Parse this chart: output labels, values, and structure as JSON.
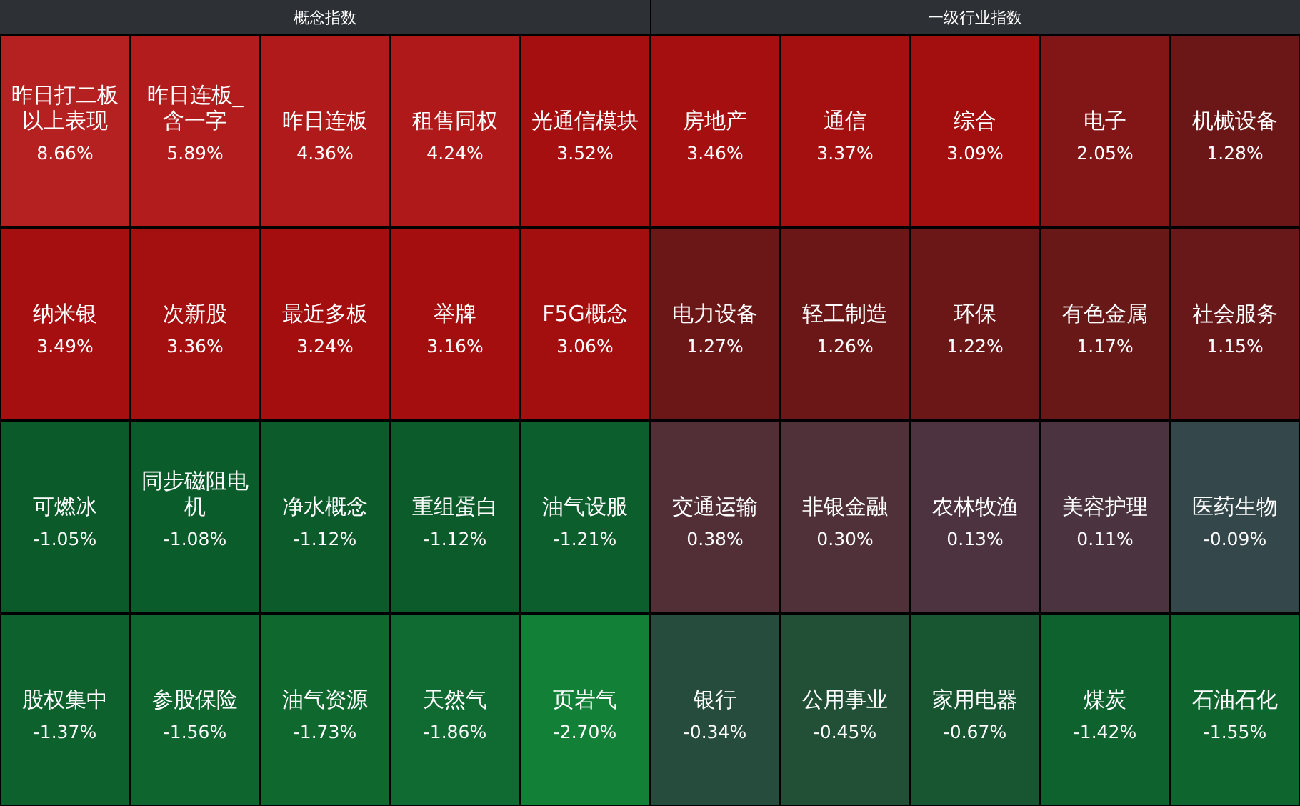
{
  "chart_data": [
    {
      "type": "other",
      "title": "概念指数",
      "categories": [
        "昨日打二板以上表现",
        "昨日连板_含一字",
        "昨日连板",
        "租售同权",
        "光通信模块",
        "纳米银",
        "次新股",
        "最近多板",
        "举牌",
        "F5G概念",
        "可燃冰",
        "同步磁阻电机",
        "净水概念",
        "重组蛋白",
        "油气设服",
        "股权集中",
        "参股保险",
        "油气资源",
        "天然气",
        "页岩气"
      ],
      "values": [
        8.66,
        5.89,
        4.36,
        4.24,
        3.52,
        3.49,
        3.36,
        3.24,
        3.16,
        3.06,
        -1.05,
        -1.08,
        -1.12,
        -1.12,
        -1.21,
        -1.37,
        -1.56,
        -1.73,
        -1.86,
        -2.7
      ],
      "value_labels": [
        "8.66%",
        "5.89%",
        "4.36%",
        "4.24%",
        "3.52%",
        "3.49%",
        "3.36%",
        "3.24%",
        "3.16%",
        "3.06%",
        "-1.05%",
        "-1.08%",
        "-1.12%",
        "-1.12%",
        "-1.21%",
        "-1.37%",
        "-1.56%",
        "-1.73%",
        "-1.86%",
        "-2.70%"
      ]
    },
    {
      "type": "other",
      "title": "一级行业指数",
      "categories": [
        "房地产",
        "通信",
        "综合",
        "电子",
        "机械设备",
        "电力设备",
        "轻工制造",
        "环保",
        "有色金属",
        "社会服务",
        "交通运输",
        "非银金融",
        "农林牧渔",
        "美容护理",
        "医药生物",
        "银行",
        "公用事业",
        "家用电器",
        "煤炭",
        "石油石化"
      ],
      "values": [
        3.46,
        3.37,
        3.09,
        2.05,
        1.28,
        1.27,
        1.26,
        1.22,
        1.17,
        1.15,
        0.38,
        0.3,
        0.13,
        0.11,
        -0.09,
        -0.34,
        -0.45,
        -0.67,
        -1.42,
        -1.55
      ],
      "value_labels": [
        "3.46%",
        "3.37%",
        "3.09%",
        "2.05%",
        "1.28%",
        "1.27%",
        "1.26%",
        "1.22%",
        "1.17%",
        "1.15%",
        "0.38%",
        "0.30%",
        "0.13%",
        "0.11%",
        "-0.09%",
        "-0.34%",
        "-0.45%",
        "-0.67%",
        "-1.42%",
        "-1.55%"
      ]
    }
  ]
}
